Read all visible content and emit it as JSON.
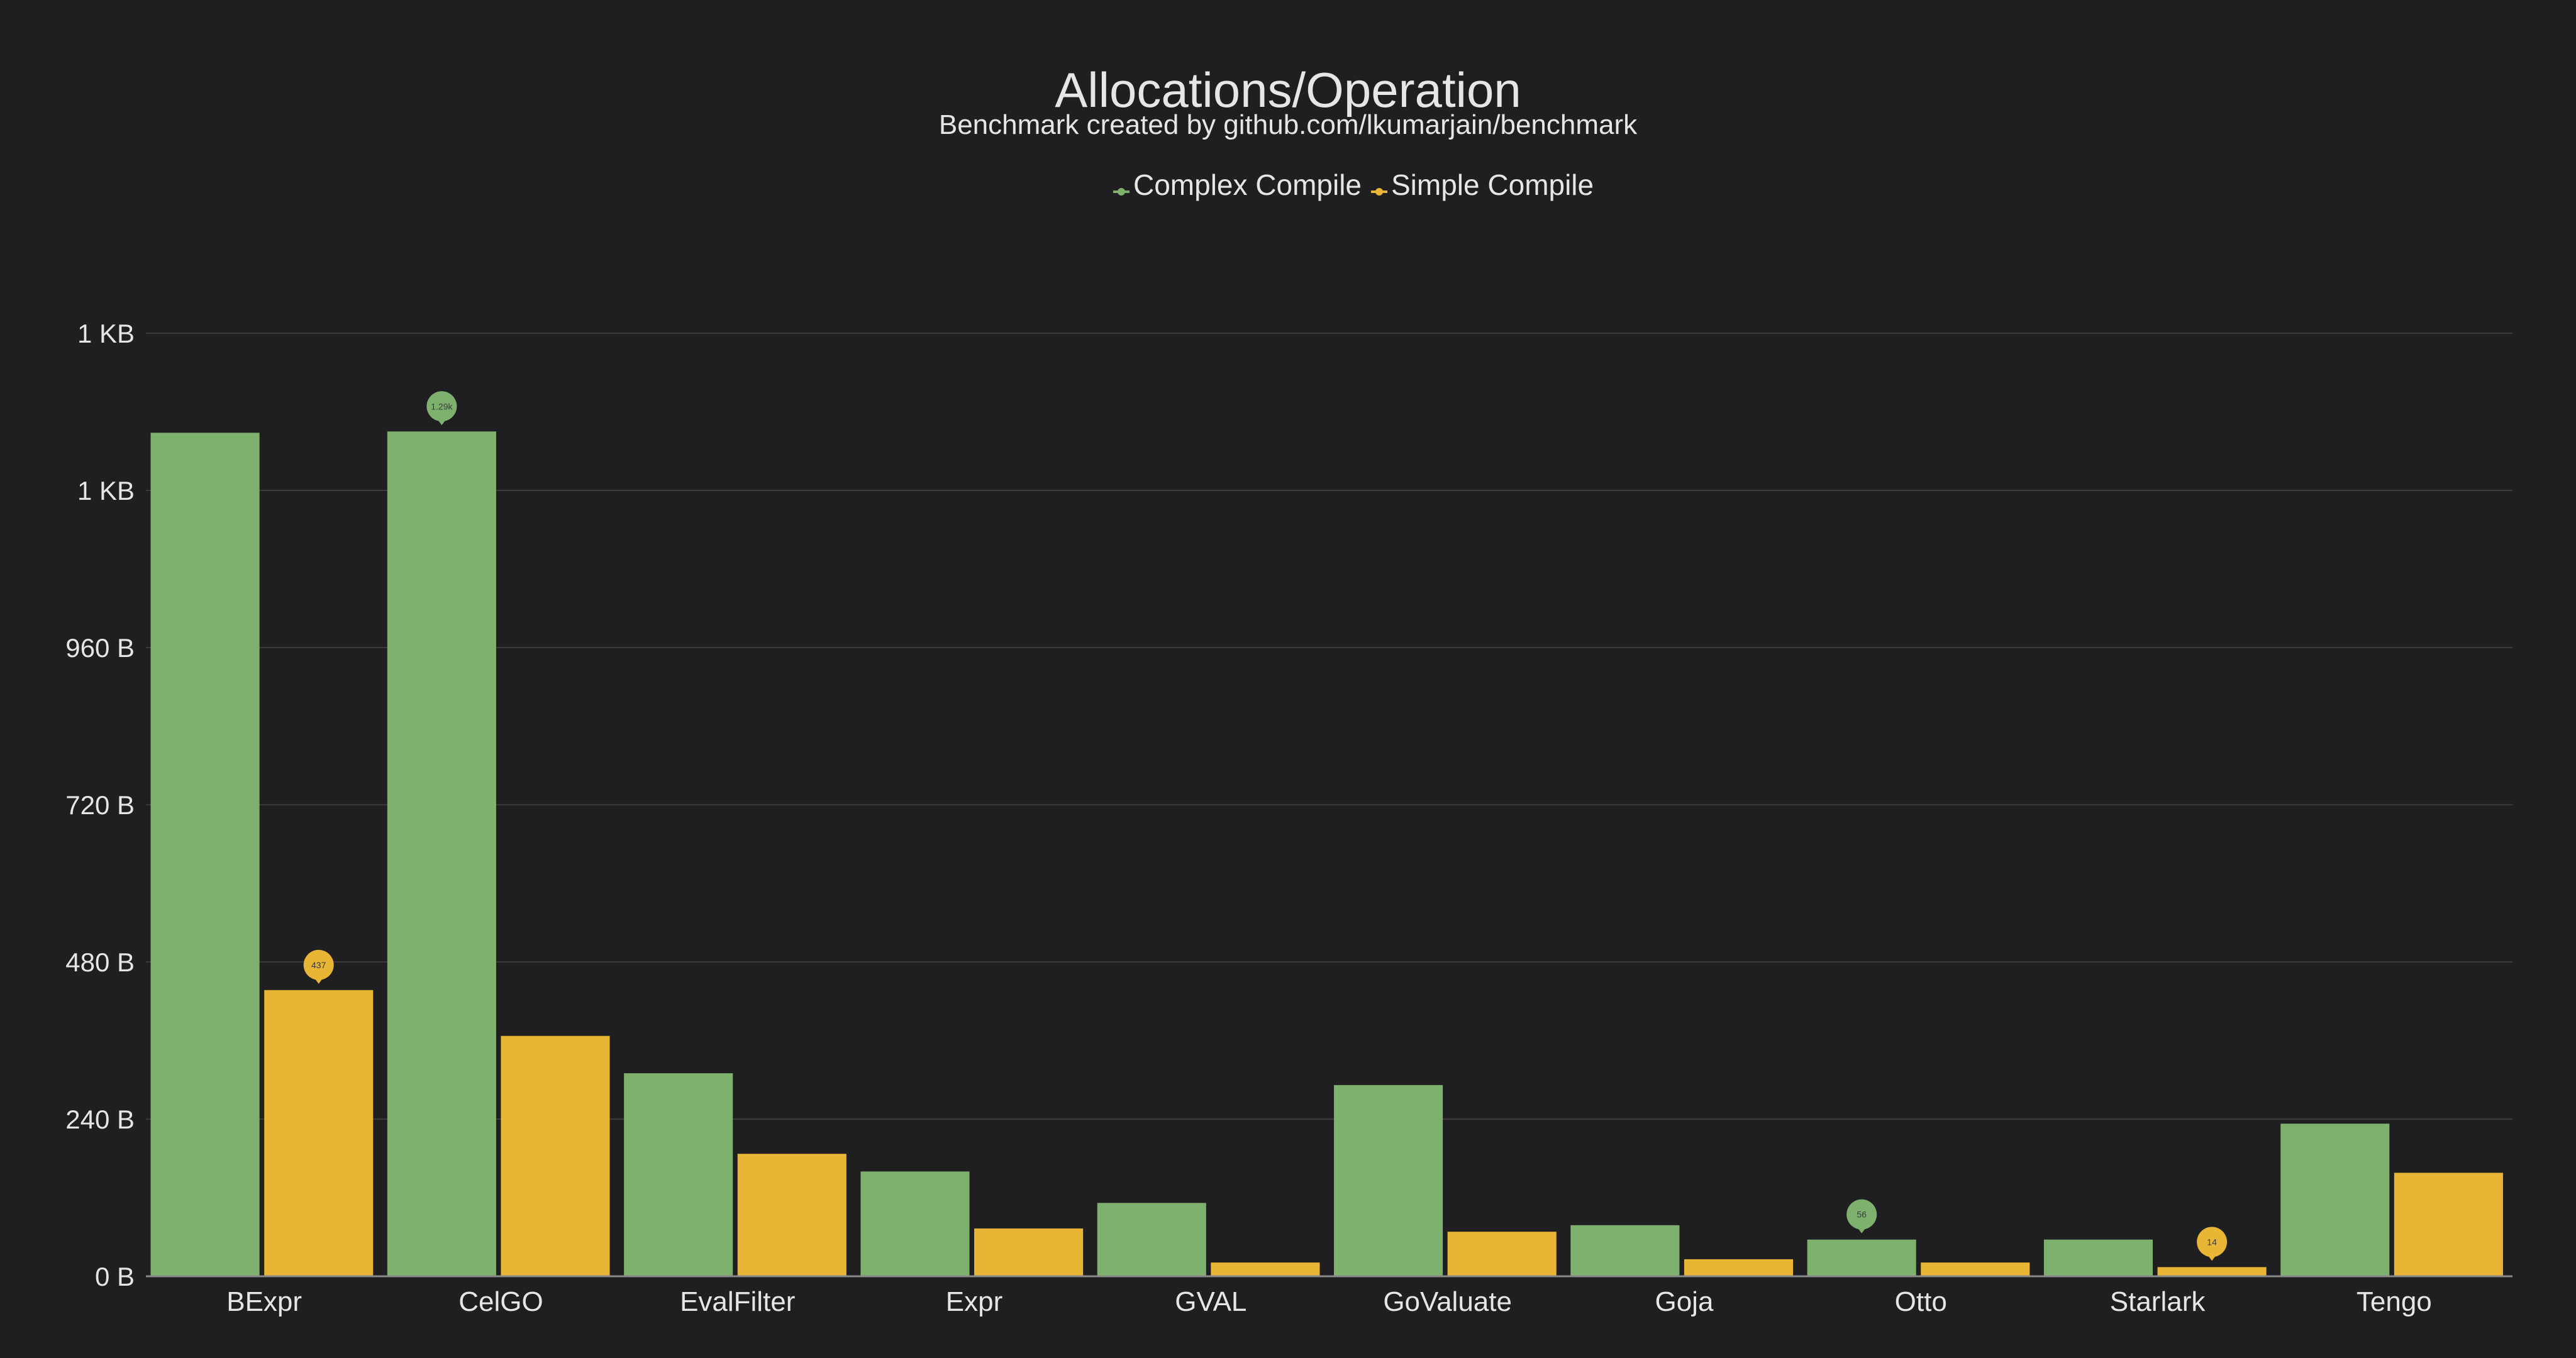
{
  "chart_data": {
    "type": "bar",
    "title": "Allocations/Operation",
    "subtitle": "Benchmark created by github.com/lkumarjain/benchmark",
    "categories": [
      "BExpr",
      "CelGO",
      "EvalFilter",
      "Expr",
      "GVAL",
      "GoValuate",
      "Goja",
      "Otto",
      "Starlark",
      "Tengo"
    ],
    "series": [
      {
        "name": "Complex Compile",
        "color": "#7fb16e",
        "values": [
          1288,
          1290,
          310,
          160,
          112,
          292,
          78,
          56,
          56,
          233
        ]
      },
      {
        "name": "Simple Compile",
        "color": "#e8b634",
        "values": [
          437,
          367,
          187,
          73,
          21,
          68,
          26,
          21,
          14,
          158
        ]
      }
    ],
    "ylim": [
      0,
      1440
    ],
    "yticks": [
      {
        "value": 0,
        "label": "0 B"
      },
      {
        "value": 240,
        "label": "240 B"
      },
      {
        "value": 480,
        "label": "480 B"
      },
      {
        "value": 720,
        "label": "720 B"
      },
      {
        "value": 960,
        "label": "960 B"
      },
      {
        "value": 1200,
        "label": "1 KB"
      },
      {
        "value": 1440,
        "label": "1 KB"
      }
    ],
    "markers": [
      {
        "series": 0,
        "category": 1,
        "label": "1.29k"
      },
      {
        "series": 1,
        "category": 0,
        "label": "437"
      },
      {
        "series": 0,
        "category": 7,
        "label": "56"
      },
      {
        "series": 1,
        "category": 8,
        "label": "14"
      }
    ],
    "legend_position": "top-center",
    "grid": true
  }
}
